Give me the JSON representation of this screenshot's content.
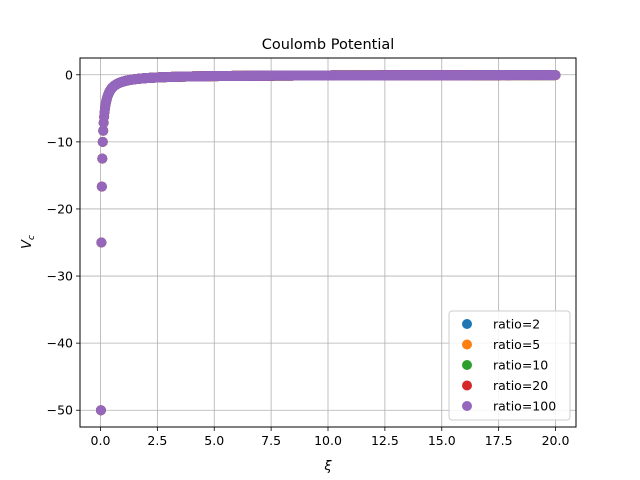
{
  "chart_data": {
    "type": "scatter",
    "title": "Coulomb Potential",
    "xlabel": "ξ",
    "ylabel_main": "V",
    "ylabel_sub": "c",
    "xlim": [
      -0.9,
      20.9
    ],
    "ylim": [
      -52.5,
      2.5
    ],
    "xticks": [
      0.0,
      2.5,
      5.0,
      7.5,
      10.0,
      12.5,
      15.0,
      17.5,
      20.0
    ],
    "xtick_labels": [
      "0.0",
      "2.5",
      "5.0",
      "7.5",
      "10.0",
      "12.5",
      "15.0",
      "17.5",
      "20.0"
    ],
    "yticks": [
      0,
      -10,
      -20,
      -30,
      -40,
      -50
    ],
    "ytick_labels": [
      "0",
      "−10",
      "−20",
      "−30",
      "−40",
      "−50"
    ],
    "grid": true,
    "legend_position": "lower-right",
    "x_sampling": {
      "start": 0.02,
      "end": 20.0,
      "step": 0.02
    },
    "model": "V = -1/ξ",
    "series": [
      {
        "name": "ratio=2",
        "color": "#1f77b4"
      },
      {
        "name": "ratio=5",
        "color": "#ff7f0e"
      },
      {
        "name": "ratio=10",
        "color": "#2ca02c"
      },
      {
        "name": "ratio=20",
        "color": "#d62728"
      },
      {
        "name": "ratio=100",
        "color": "#9467bd"
      }
    ]
  }
}
